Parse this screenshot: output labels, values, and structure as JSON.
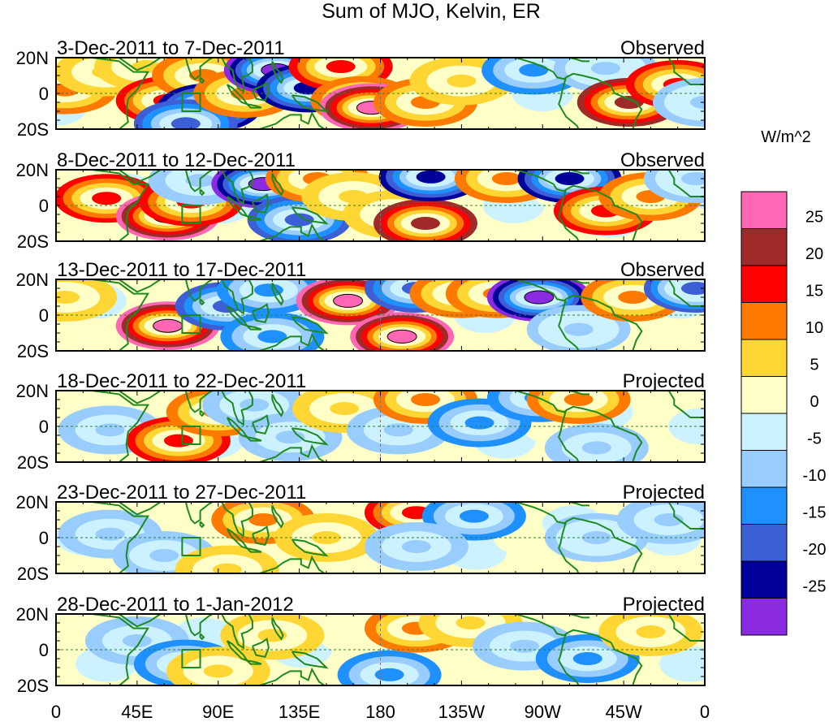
{
  "chart_data": {
    "type": "heatmap",
    "title": "Sum of MJO, Kelvin, ER",
    "colorbar": {
      "unit_label": "W/m^2",
      "tick_labels": [
        "25",
        "20",
        "15",
        "10",
        "5",
        "0",
        "-5",
        "-10",
        "-15",
        "-20",
        "-25"
      ],
      "bins": [
        {
          "range": "above 25",
          "color": "#ff66b3"
        },
        {
          "range": "20 to 25",
          "color": "#9e2a2a"
        },
        {
          "range": "15 to 20",
          "color": "#ff0000"
        },
        {
          "range": "10 to 15",
          "color": "#ff7a00"
        },
        {
          "range": "5 to 10",
          "color": "#ffd633"
        },
        {
          "range": "0 to 5",
          "color": "#ffffc8"
        },
        {
          "range": "-5 to 0",
          "color": "#cdf2ff"
        },
        {
          "range": "-10 to -5",
          "color": "#99ccff"
        },
        {
          "range": "-15 to -10",
          "color": "#1f90ff"
        },
        {
          "range": "-20 to -15",
          "color": "#3c5fd6"
        },
        {
          "range": "-25 to -20",
          "color": "#000099"
        },
        {
          "range": "below -25",
          "color": "#8a2be2"
        }
      ]
    },
    "x_axis": {
      "range_degrees_east": [
        0,
        360
      ],
      "ticks": [
        {
          "lon": 0,
          "label": "0"
        },
        {
          "lon": 45,
          "label": "45E"
        },
        {
          "lon": 90,
          "label": "90E"
        },
        {
          "lon": 135,
          "label": "135E"
        },
        {
          "lon": 180,
          "label": "180"
        },
        {
          "lon": 225,
          "label": "135W"
        },
        {
          "lon": 270,
          "label": "90W"
        },
        {
          "lon": 315,
          "label": "45W"
        },
        {
          "lon": 360,
          "label": "0"
        }
      ]
    },
    "y_axis": {
      "range_degrees": [
        -20,
        20
      ],
      "ticks": [
        {
          "lat": 20,
          "label": "20N"
        },
        {
          "lat": 0,
          "label": "0"
        },
        {
          "lat": -20,
          "label": "20S"
        }
      ]
    },
    "panels": [
      {
        "period": "3-Dec-2011 to 7-Dec-2011",
        "status": "Observed",
        "anomalies": [
          {
            "lon": 5,
            "lat": 2,
            "value": 14
          },
          {
            "lon": 28,
            "lat": 12,
            "value": 8
          },
          {
            "lon": 50,
            "lat": 15,
            "value": 9
          },
          {
            "lon": 62,
            "lat": -4,
            "value": 16
          },
          {
            "lon": 82,
            "lat": 10,
            "value": 12
          },
          {
            "lon": 85,
            "lat": -8,
            "value": -24
          },
          {
            "lon": 72,
            "lat": -17,
            "value": -18
          },
          {
            "lon": 105,
            "lat": 0,
            "value": 12
          },
          {
            "lon": 122,
            "lat": 13,
            "value": -27
          },
          {
            "lon": 140,
            "lat": 3,
            "value": -22
          },
          {
            "lon": 158,
            "lat": 15,
            "value": 15
          },
          {
            "lon": 170,
            "lat": -4,
            "value": 14
          },
          {
            "lon": 175,
            "lat": -8,
            "value": 26
          },
          {
            "lon": 205,
            "lat": -5,
            "value": 10
          },
          {
            "lon": 225,
            "lat": 7,
            "value": 8
          },
          {
            "lon": 265,
            "lat": 13,
            "value": -12
          },
          {
            "lon": 305,
            "lat": 14,
            "value": -10
          },
          {
            "lon": 318,
            "lat": -5,
            "value": 20
          },
          {
            "lon": 345,
            "lat": 5,
            "value": 18
          },
          {
            "lon": 360,
            "lat": -5,
            "value": -10
          }
        ]
      },
      {
        "period": "8-Dec-2011 to 12-Dec-2011",
        "status": "Observed",
        "anomalies": [
          {
            "lon": 28,
            "lat": 4,
            "value": 17
          },
          {
            "lon": 62,
            "lat": -6,
            "value": 27
          },
          {
            "lon": 75,
            "lat": 2,
            "value": 15
          },
          {
            "lon": 80,
            "lat": 14,
            "value": -8
          },
          {
            "lon": 115,
            "lat": 12,
            "value": -27
          },
          {
            "lon": 135,
            "lat": -8,
            "value": -18
          },
          {
            "lon": 145,
            "lat": 15,
            "value": 10
          },
          {
            "lon": 165,
            "lat": 5,
            "value": 6
          },
          {
            "lon": 188,
            "lat": -5,
            "value": 8
          },
          {
            "lon": 205,
            "lat": -10,
            "value": 22
          },
          {
            "lon": 208,
            "lat": 16,
            "value": -24
          },
          {
            "lon": 250,
            "lat": 15,
            "value": 12
          },
          {
            "lon": 285,
            "lat": 15,
            "value": -22
          },
          {
            "lon": 305,
            "lat": -3,
            "value": 16
          },
          {
            "lon": 330,
            "lat": 5,
            "value": 11
          },
          {
            "lon": 355,
            "lat": 15,
            "value": -10
          }
        ]
      },
      {
        "period": "13-Dec-2011 to 17-Dec-2011",
        "status": "Observed",
        "anomalies": [
          {
            "lon": 5,
            "lat": 10,
            "value": 8
          },
          {
            "lon": 62,
            "lat": -6,
            "value": 27
          },
          {
            "lon": 95,
            "lat": 5,
            "value": -18
          },
          {
            "lon": 118,
            "lat": 14,
            "value": -14
          },
          {
            "lon": 120,
            "lat": -12,
            "value": -12
          },
          {
            "lon": 162,
            "lat": 8,
            "value": 26
          },
          {
            "lon": 192,
            "lat": -12,
            "value": 26
          },
          {
            "lon": 200,
            "lat": 15,
            "value": -16
          },
          {
            "lon": 225,
            "lat": 12,
            "value": 14
          },
          {
            "lon": 245,
            "lat": 12,
            "value": 10
          },
          {
            "lon": 268,
            "lat": 10,
            "value": -28
          },
          {
            "lon": 290,
            "lat": -8,
            "value": -10
          },
          {
            "lon": 320,
            "lat": 10,
            "value": 14
          },
          {
            "lon": 355,
            "lat": 15,
            "value": -20
          }
        ]
      },
      {
        "period": "18-Dec-2011 to 22-Dec-2011",
        "status": "Projected",
        "anomalies": [
          {
            "lon": 30,
            "lat": -2,
            "value": -8
          },
          {
            "lon": 68,
            "lat": -8,
            "value": 17
          },
          {
            "lon": 90,
            "lat": 8,
            "value": 11
          },
          {
            "lon": 110,
            "lat": 12,
            "value": -9
          },
          {
            "lon": 130,
            "lat": -6,
            "value": -9
          },
          {
            "lon": 160,
            "lat": 10,
            "value": 6
          },
          {
            "lon": 190,
            "lat": -2,
            "value": -9
          },
          {
            "lon": 205,
            "lat": 15,
            "value": 12
          },
          {
            "lon": 235,
            "lat": 2,
            "value": -12
          },
          {
            "lon": 268,
            "lat": 16,
            "value": -13
          },
          {
            "lon": 290,
            "lat": 15,
            "value": 13
          },
          {
            "lon": 300,
            "lat": -12,
            "value": -8
          }
        ]
      },
      {
        "period": "23-Dec-2011 to 27-Dec-2011",
        "status": "Projected",
        "anomalies": [
          {
            "lon": 30,
            "lat": 2,
            "value": -8
          },
          {
            "lon": 60,
            "lat": -10,
            "value": -9
          },
          {
            "lon": 95,
            "lat": -18,
            "value": 6
          },
          {
            "lon": 115,
            "lat": 10,
            "value": 12
          },
          {
            "lon": 150,
            "lat": 0,
            "value": 9
          },
          {
            "lon": 200,
            "lat": 14,
            "value": 18
          },
          {
            "lon": 232,
            "lat": 12,
            "value": -13
          },
          {
            "lon": 200,
            "lat": -5,
            "value": -8
          },
          {
            "lon": 300,
            "lat": 0,
            "value": -10
          },
          {
            "lon": 340,
            "lat": 10,
            "value": -8
          }
        ]
      },
      {
        "period": "28-Dec-2011 to 1-Jan-2012",
        "status": "Projected",
        "anomalies": [
          {
            "lon": 45,
            "lat": 5,
            "value": -9
          },
          {
            "lon": 72,
            "lat": -8,
            "value": -12
          },
          {
            "lon": 90,
            "lat": -12,
            "value": 7
          },
          {
            "lon": 120,
            "lat": 8,
            "value": 7
          },
          {
            "lon": 185,
            "lat": -14,
            "value": -12
          },
          {
            "lon": 200,
            "lat": 12,
            "value": 14
          },
          {
            "lon": 230,
            "lat": 15,
            "value": 8
          },
          {
            "lon": 260,
            "lat": 2,
            "value": -8
          },
          {
            "lon": 295,
            "lat": -5,
            "value": -12
          },
          {
            "lon": 330,
            "lat": 10,
            "value": 6
          }
        ]
      }
    ],
    "overlay": {
      "box_region": {
        "lon_range": [
          70,
          80
        ],
        "lat_range": [
          -10,
          0
        ]
      }
    }
  }
}
